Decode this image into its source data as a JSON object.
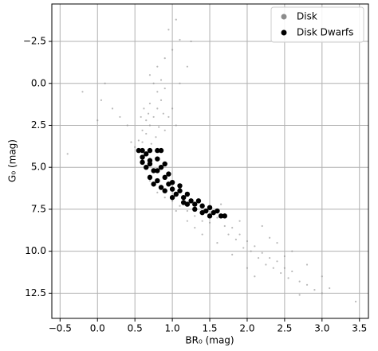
{
  "chart_data": {
    "type": "scatter",
    "xlabel": "BR₀ (mag)",
    "ylabel": "G₀ (mag)",
    "xlim": [
      -0.61,
      3.62
    ],
    "ylim": [
      14.0,
      -4.73
    ],
    "xticks": [
      {
        "value": -0.5,
        "label": "−0.5"
      },
      {
        "value": 0,
        "label": "0.0"
      },
      0.5,
      {
        "value": 1,
        "label": "1.0"
      },
      1.5,
      {
        "value": 2,
        "label": "2.0"
      },
      2.5,
      {
        "value": 3,
        "label": "3.0"
      },
      3.5
    ],
    "yticks": [
      {
        "value": -2.5,
        "label": "−2.5"
      },
      {
        "value": 0,
        "label": "0.0"
      },
      2.5,
      {
        "value": 5,
        "label": "5.0"
      },
      7.5,
      {
        "value": 10,
        "label": "10.0"
      },
      12.5
    ],
    "grid": true,
    "legend": "upper right",
    "series": [
      {
        "name": "Disk",
        "color": "#8c8c8c",
        "x": [
          0.55,
          0.6,
          0.65,
          0.7,
          0.75,
          0.8,
          0.85,
          0.8,
          0.75,
          0.85,
          0.9,
          0.7,
          0.65,
          0.6,
          0.55,
          0.5,
          0.45,
          0.72,
          0.78,
          0.9,
          0.95,
          1.0,
          1.05,
          0.88,
          0.82,
          0.68,
          0.62,
          0.58,
          0.8,
          0.9,
          1.0,
          1.1,
          1.25,
          0.95,
          1.05,
          0.7,
          1.2,
          1.1,
          0.3,
          0.2,
          0.0,
          0.05,
          -0.4,
          -0.2,
          0.1,
          0.4,
          0.6,
          0.65,
          0.7,
          0.8,
          0.9,
          1.0,
          1.1,
          1.2,
          1.3,
          1.4,
          1.5,
          1.6,
          1.7,
          1.75,
          1.8,
          1.85,
          1.9,
          1.95,
          2.0,
          2.05,
          2.1,
          2.15,
          2.2,
          2.25,
          2.3,
          2.35,
          2.4,
          2.45,
          2.5,
          2.55,
          2.6,
          2.7,
          2.8,
          2.9,
          3.0,
          3.1,
          3.45,
          2.2,
          2.4,
          2.6,
          1.8,
          1.6,
          2.0,
          1.7,
          1.9,
          2.3,
          2.5,
          2.8,
          3.0,
          1.4,
          1.3,
          1.2,
          2.1,
          2.7,
          1.05,
          1.5,
          1.65
        ],
        "values": [
          3.9,
          3.5,
          3.0,
          2.5,
          2.0,
          1.5,
          1.0,
          0.5,
          0.0,
          -0.2,
          0.3,
          1.2,
          2.2,
          2.8,
          3.4,
          3.8,
          3.5,
          3.6,
          3.2,
          2.8,
          2.0,
          1.5,
          2.5,
          1.8,
          2.6,
          1.8,
          1.5,
          2.0,
          -1.0,
          -1.5,
          -2.0,
          -2.6,
          -2.5,
          -3.2,
          -3.8,
          -0.5,
          -1.0,
          0.0,
          2.0,
          1.5,
          2.2,
          1.0,
          4.2,
          0.5,
          0.0,
          2.5,
          4.5,
          5.0,
          5.8,
          6.5,
          6.8,
          7.0,
          7.3,
          7.6,
          7.9,
          8.2,
          8.3,
          8.0,
          8.5,
          9.0,
          8.6,
          9.3,
          9.0,
          9.8,
          9.4,
          10.0,
          9.7,
          10.4,
          10.1,
          10.8,
          10.4,
          11.0,
          10.6,
          11.3,
          11.0,
          11.6,
          11.2,
          11.8,
          12.0,
          12.3,
          12.5,
          12.2,
          13.0,
          8.5,
          9.5,
          10.0,
          10.2,
          9.5,
          11.0,
          7.8,
          8.2,
          9.2,
          10.3,
          10.8,
          11.5,
          9.0,
          8.6,
          8.2,
          11.5,
          12.6,
          7.6,
          7.5,
          7.2
        ]
      },
      {
        "name": "Disk Dwarfs",
        "color": "#000000",
        "x": [
          0.55,
          0.6,
          0.7,
          0.8,
          0.85,
          0.6,
          0.7,
          0.8,
          0.65,
          0.75,
          0.85,
          0.7,
          0.8,
          0.9,
          0.75,
          0.85,
          0.95,
          1.0,
          0.9,
          1.05,
          1.1,
          1.0,
          1.15,
          1.2,
          1.25,
          1.15,
          1.3,
          1.35,
          1.4,
          1.3,
          1.45,
          1.5,
          1.55,
          1.6,
          1.65,
          1.5,
          1.4,
          1.1,
          0.95,
          0.8,
          0.7,
          0.9,
          0.65,
          1.2,
          1.0,
          0.6,
          1.7
        ],
        "values": [
          4.0,
          4.0,
          4.0,
          4.0,
          4.0,
          4.4,
          4.6,
          4.5,
          5.0,
          5.2,
          5.0,
          5.6,
          5.8,
          5.6,
          6.0,
          6.2,
          6.0,
          6.3,
          6.4,
          6.6,
          6.4,
          6.8,
          6.8,
          6.6,
          7.0,
          7.1,
          7.2,
          7.0,
          7.3,
          7.5,
          7.6,
          7.4,
          7.7,
          7.6,
          7.9,
          7.9,
          7.7,
          6.1,
          5.4,
          5.2,
          4.8,
          4.8,
          4.2,
          7.2,
          5.9,
          4.7,
          7.9
        ]
      }
    ]
  }
}
